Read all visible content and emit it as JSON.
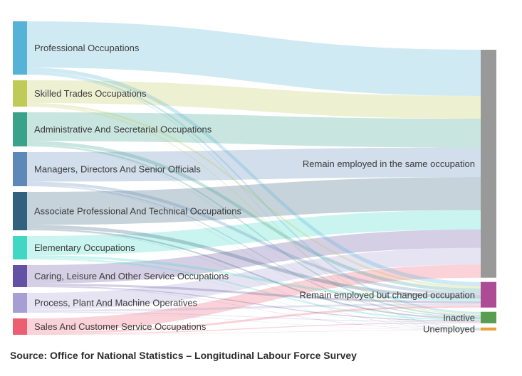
{
  "chart_data": {
    "type": "sankey",
    "title": "",
    "units": "relative flow size (estimated from ribbon thickness; no numeric axis shown)",
    "legend_position": "none",
    "nodes": {
      "left": [
        {
          "id": "professional",
          "label": "Professional Occupations",
          "color": "#56b3d7"
        },
        {
          "id": "skilled-trades",
          "label": "Skilled Trades Occupations",
          "color": "#c0ca58"
        },
        {
          "id": "admin-secretarial",
          "label": "Administrative And Secretarial Occupations",
          "color": "#3aa18b"
        },
        {
          "id": "managers",
          "label": "Managers, Directors And Senior Officials",
          "color": "#5e88b8"
        },
        {
          "id": "associate-prof",
          "label": "Associate Professional And Technical Occupations",
          "color": "#31617f"
        },
        {
          "id": "elementary",
          "label": "Elementary Occupations",
          "color": "#40d7c4"
        },
        {
          "id": "caring-leisure",
          "label": "Caring, Leisure And Other Service Occupations",
          "color": "#6351a3"
        },
        {
          "id": "process-plant",
          "label": "Process, Plant And Machine Operatives",
          "color": "#a79fd4"
        },
        {
          "id": "sales-customer",
          "label": "Sales And Customer Service Occupations",
          "color": "#ec5f72"
        }
      ],
      "right": [
        {
          "id": "remain-same",
          "label": "Remain employed in the same occupation",
          "color": "#999999"
        },
        {
          "id": "changed-occ",
          "label": "Remain employed but changed occupation",
          "color": "#ad4b95"
        },
        {
          "id": "inactive",
          "label": "Inactive",
          "color": "#579d52"
        },
        {
          "id": "unemployed",
          "label": "Unemployed",
          "color": "#e7a33c"
        }
      ]
    },
    "links": [
      {
        "source": 0,
        "target": 0,
        "value": 65
      },
      {
        "source": 0,
        "target": 1,
        "value": 6
      },
      {
        "source": 0,
        "target": 2,
        "value": 3
      },
      {
        "source": 0,
        "target": 3,
        "value": 1
      },
      {
        "source": 1,
        "target": 0,
        "value": 32
      },
      {
        "source": 1,
        "target": 1,
        "value": 3
      },
      {
        "source": 1,
        "target": 2,
        "value": 1.6
      },
      {
        "source": 1,
        "target": 3,
        "value": 0.4
      },
      {
        "source": 2,
        "target": 0,
        "value": 40.5
      },
      {
        "source": 2,
        "target": 1,
        "value": 5
      },
      {
        "source": 2,
        "target": 2,
        "value": 2.1
      },
      {
        "source": 2,
        "target": 3,
        "value": 0.4
      },
      {
        "source": 3,
        "target": 0,
        "value": 41.6
      },
      {
        "source": 3,
        "target": 1,
        "value": 4.5
      },
      {
        "source": 3,
        "target": 2,
        "value": 1.5
      },
      {
        "source": 3,
        "target": 3,
        "value": 0.4
      },
      {
        "source": 4,
        "target": 0,
        "value": 46.5
      },
      {
        "source": 4,
        "target": 1,
        "value": 5
      },
      {
        "source": 4,
        "target": 2,
        "value": 2.1
      },
      {
        "source": 4,
        "target": 3,
        "value": 0.4
      },
      {
        "source": 5,
        "target": 0,
        "value": 27.1
      },
      {
        "source": 5,
        "target": 1,
        "value": 3.5
      },
      {
        "source": 5,
        "target": 2,
        "value": 2
      },
      {
        "source": 5,
        "target": 3,
        "value": 0.4
      },
      {
        "source": 6,
        "target": 0,
        "value": 26
      },
      {
        "source": 6,
        "target": 1,
        "value": 3.2
      },
      {
        "source": 6,
        "target": 2,
        "value": 1.4
      },
      {
        "source": 6,
        "target": 3,
        "value": 0.4
      },
      {
        "source": 7,
        "target": 0,
        "value": 23.6
      },
      {
        "source": 7,
        "target": 1,
        "value": 2.9
      },
      {
        "source": 7,
        "target": 2,
        "value": 1.1
      },
      {
        "source": 7,
        "target": 3,
        "value": 0.4
      },
      {
        "source": 8,
        "target": 0,
        "value": 18.4
      },
      {
        "source": 8,
        "target": 1,
        "value": 2.9
      },
      {
        "source": 8,
        "target": 2,
        "value": 1.3
      },
      {
        "source": 8,
        "target": 3,
        "value": 0.4
      }
    ],
    "link_opacity": 0.28,
    "text_color": "#3c3c3c"
  },
  "caption": {
    "source_text": "Source: Office for National Statistics – Longitudinal Labour Force Survey"
  }
}
